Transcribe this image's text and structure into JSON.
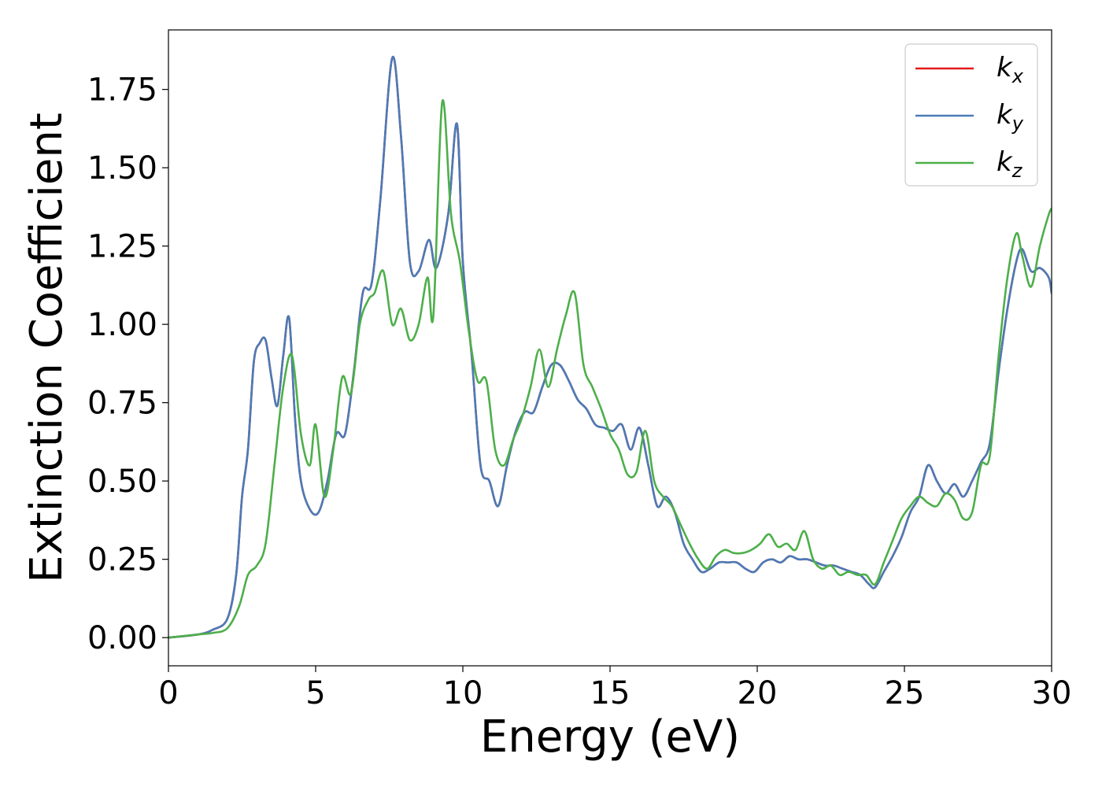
{
  "chart_data": {
    "type": "line",
    "xlabel": "Energy (eV)",
    "ylabel": "Extinction Coefficient",
    "xlim": [
      0,
      30
    ],
    "ylim": [
      -0.09,
      1.94
    ],
    "xticks": [
      0,
      5,
      10,
      15,
      20,
      25,
      30
    ],
    "yticks": [
      0.0,
      0.25,
      0.5,
      0.75,
      1.0,
      1.25,
      1.5,
      1.75
    ],
    "xtick_labels": [
      "0",
      "5",
      "10",
      "15",
      "20",
      "25",
      "30"
    ],
    "ytick_labels": [
      "0.00",
      "0.25",
      "0.50",
      "0.75",
      "1.00",
      "1.25",
      "1.50",
      "1.75"
    ],
    "grid": false,
    "legend_position": "top-right",
    "series": [
      {
        "name": "k_x",
        "label_main": "k",
        "label_sub": "x",
        "color": "#e41a1c",
        "x": [
          0,
          1,
          1.5,
          2,
          2.3,
          2.5,
          2.7,
          2.9,
          3.1,
          3.3,
          3.5,
          3.7,
          3.9,
          4.1,
          4.3,
          4.5,
          4.8,
          5.1,
          5.4,
          5.7,
          6.0,
          6.3,
          6.6,
          6.9,
          7.2,
          7.6,
          7.9,
          8.2,
          8.5,
          8.85,
          9.1,
          9.5,
          9.8,
          10.0,
          10.3,
          10.6,
          10.9,
          11.2,
          11.5,
          11.8,
          12.1,
          12.4,
          12.7,
          13.0,
          13.3,
          13.6,
          13.9,
          14.2,
          14.5,
          14.8,
          15.1,
          15.4,
          15.7,
          16.0,
          16.3,
          16.6,
          16.9,
          17.2,
          17.5,
          17.8,
          18.1,
          18.4,
          18.7,
          19.0,
          19.3,
          19.6,
          19.9,
          20.2,
          20.5,
          20.8,
          21.1,
          21.4,
          21.7,
          22.0,
          22.3,
          22.6,
          22.9,
          23.2,
          23.5,
          23.8,
          24.0,
          24.3,
          24.6,
          24.9,
          25.2,
          25.5,
          25.8,
          26.1,
          26.4,
          26.7,
          27.0,
          27.3,
          27.6,
          27.9,
          28.2,
          28.5,
          28.8,
          29.0,
          29.3,
          29.6,
          29.9,
          30
        ],
        "y": [
          0.0,
          0.01,
          0.025,
          0.06,
          0.2,
          0.45,
          0.6,
          0.88,
          0.94,
          0.95,
          0.83,
          0.74,
          0.9,
          1.02,
          0.7,
          0.5,
          0.41,
          0.4,
          0.5,
          0.65,
          0.65,
          0.85,
          1.1,
          1.13,
          1.4,
          1.85,
          1.6,
          1.2,
          1.17,
          1.27,
          1.18,
          1.35,
          1.64,
          1.2,
          0.9,
          0.55,
          0.5,
          0.42,
          0.55,
          0.66,
          0.72,
          0.72,
          0.8,
          0.87,
          0.87,
          0.82,
          0.76,
          0.73,
          0.68,
          0.67,
          0.66,
          0.68,
          0.6,
          0.67,
          0.55,
          0.42,
          0.45,
          0.4,
          0.3,
          0.25,
          0.21,
          0.22,
          0.24,
          0.24,
          0.24,
          0.22,
          0.21,
          0.24,
          0.25,
          0.24,
          0.26,
          0.25,
          0.25,
          0.24,
          0.23,
          0.23,
          0.22,
          0.21,
          0.2,
          0.17,
          0.16,
          0.21,
          0.26,
          0.32,
          0.4,
          0.45,
          0.55,
          0.5,
          0.46,
          0.49,
          0.45,
          0.5,
          0.56,
          0.62,
          0.85,
          1.05,
          1.2,
          1.24,
          1.17,
          1.18,
          1.15,
          1.1
        ]
      },
      {
        "name": "k_y",
        "label_main": "k",
        "label_sub": "y",
        "color": "#4a7bb7",
        "x": [
          0,
          1,
          1.5,
          2,
          2.3,
          2.5,
          2.7,
          2.9,
          3.1,
          3.3,
          3.5,
          3.7,
          3.9,
          4.1,
          4.3,
          4.5,
          4.8,
          5.1,
          5.4,
          5.7,
          6.0,
          6.3,
          6.6,
          6.9,
          7.2,
          7.6,
          7.9,
          8.2,
          8.5,
          8.85,
          9.1,
          9.5,
          9.8,
          10.0,
          10.3,
          10.6,
          10.9,
          11.2,
          11.5,
          11.8,
          12.1,
          12.4,
          12.7,
          13.0,
          13.3,
          13.6,
          13.9,
          14.2,
          14.5,
          14.8,
          15.1,
          15.4,
          15.7,
          16.0,
          16.3,
          16.6,
          16.9,
          17.2,
          17.5,
          17.8,
          18.1,
          18.4,
          18.7,
          19.0,
          19.3,
          19.6,
          19.9,
          20.2,
          20.5,
          20.8,
          21.1,
          21.4,
          21.7,
          22.0,
          22.3,
          22.6,
          22.9,
          23.2,
          23.5,
          23.8,
          24.0,
          24.3,
          24.6,
          24.9,
          25.2,
          25.5,
          25.8,
          26.1,
          26.4,
          26.7,
          27.0,
          27.3,
          27.6,
          27.9,
          28.2,
          28.5,
          28.8,
          29.0,
          29.3,
          29.6,
          29.9,
          30
        ],
        "y": [
          0.0,
          0.01,
          0.025,
          0.06,
          0.2,
          0.45,
          0.6,
          0.88,
          0.94,
          0.95,
          0.83,
          0.74,
          0.9,
          1.02,
          0.7,
          0.5,
          0.41,
          0.4,
          0.5,
          0.65,
          0.65,
          0.85,
          1.1,
          1.13,
          1.4,
          1.85,
          1.6,
          1.2,
          1.17,
          1.27,
          1.18,
          1.35,
          1.64,
          1.2,
          0.9,
          0.55,
          0.5,
          0.42,
          0.55,
          0.66,
          0.72,
          0.72,
          0.8,
          0.87,
          0.87,
          0.82,
          0.76,
          0.73,
          0.68,
          0.67,
          0.66,
          0.68,
          0.6,
          0.67,
          0.55,
          0.42,
          0.45,
          0.4,
          0.3,
          0.25,
          0.21,
          0.22,
          0.24,
          0.24,
          0.24,
          0.22,
          0.21,
          0.24,
          0.25,
          0.24,
          0.26,
          0.25,
          0.25,
          0.24,
          0.23,
          0.23,
          0.22,
          0.21,
          0.2,
          0.17,
          0.16,
          0.21,
          0.26,
          0.32,
          0.4,
          0.45,
          0.55,
          0.5,
          0.46,
          0.49,
          0.45,
          0.5,
          0.56,
          0.62,
          0.85,
          1.05,
          1.2,
          1.24,
          1.17,
          1.18,
          1.15,
          1.1
        ]
      },
      {
        "name": "k_z",
        "label_main": "k",
        "label_sub": "z",
        "color": "#4daf4a",
        "x": [
          0,
          1,
          1.5,
          2,
          2.4,
          2.7,
          3.0,
          3.3,
          3.6,
          3.9,
          4.2,
          4.5,
          4.8,
          5.0,
          5.3,
          5.6,
          5.9,
          6.2,
          6.5,
          6.8,
          7.0,
          7.3,
          7.6,
          7.9,
          8.2,
          8.5,
          8.8,
          9.0,
          9.3,
          9.6,
          9.9,
          10.2,
          10.5,
          10.8,
          11.1,
          11.4,
          11.7,
          12.0,
          12.3,
          12.6,
          12.9,
          13.2,
          13.5,
          13.8,
          14.1,
          14.4,
          14.7,
          15.0,
          15.3,
          15.6,
          15.9,
          16.2,
          16.5,
          16.8,
          17.1,
          17.4,
          17.7,
          18.0,
          18.3,
          18.6,
          18.9,
          19.2,
          19.5,
          19.8,
          20.1,
          20.4,
          20.7,
          21.0,
          21.3,
          21.6,
          21.9,
          22.2,
          22.5,
          22.8,
          23.1,
          23.4,
          23.7,
          24.0,
          24.3,
          24.6,
          24.9,
          25.2,
          25.5,
          25.8,
          26.1,
          26.4,
          26.7,
          27.0,
          27.3,
          27.6,
          27.9,
          28.2,
          28.5,
          28.8,
          29.0,
          29.3,
          29.6,
          29.9,
          30
        ],
        "y": [
          0.0,
          0.01,
          0.015,
          0.03,
          0.1,
          0.2,
          0.23,
          0.3,
          0.55,
          0.8,
          0.9,
          0.65,
          0.55,
          0.68,
          0.45,
          0.6,
          0.83,
          0.78,
          1.0,
          1.08,
          1.1,
          1.17,
          1.0,
          1.05,
          0.95,
          1.0,
          1.15,
          1.03,
          1.71,
          1.35,
          1.2,
          0.98,
          0.82,
          0.82,
          0.6,
          0.55,
          0.63,
          0.7,
          0.8,
          0.92,
          0.8,
          0.92,
          1.03,
          1.1,
          0.87,
          0.8,
          0.73,
          0.65,
          0.6,
          0.52,
          0.53,
          0.66,
          0.5,
          0.45,
          0.42,
          0.36,
          0.3,
          0.25,
          0.22,
          0.26,
          0.28,
          0.27,
          0.27,
          0.28,
          0.3,
          0.33,
          0.29,
          0.3,
          0.28,
          0.34,
          0.25,
          0.22,
          0.23,
          0.2,
          0.21,
          0.2,
          0.2,
          0.17,
          0.24,
          0.31,
          0.38,
          0.42,
          0.45,
          0.43,
          0.42,
          0.46,
          0.44,
          0.38,
          0.4,
          0.55,
          0.58,
          0.9,
          1.15,
          1.29,
          1.22,
          1.12,
          1.25,
          1.35,
          1.37
        ]
      }
    ]
  }
}
